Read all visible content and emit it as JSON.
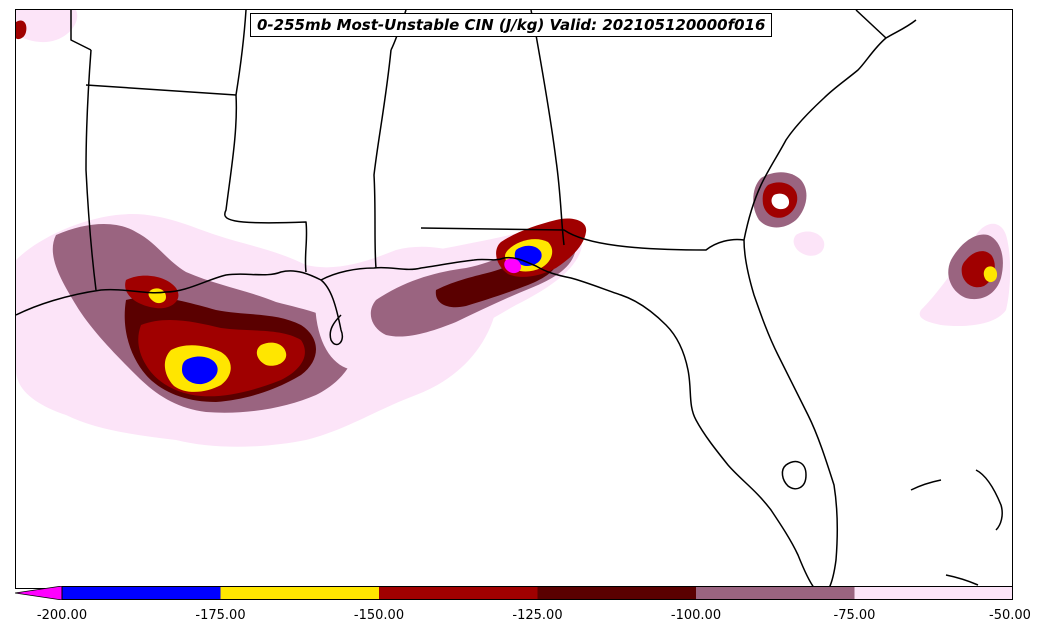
{
  "title": "0-255mb Most-Unstable CIN (J/kg) Valid: 202105120000f016",
  "colorbar": {
    "extend": "min",
    "underflow_color": "#ff00ff",
    "bins": [
      {
        "from": -200,
        "to": -175,
        "color": "#0000ff"
      },
      {
        "from": -175,
        "to": -150,
        "color": "#ffe600"
      },
      {
        "from": -150,
        "to": -125,
        "color": "#a00000"
      },
      {
        "from": -125,
        "to": -100,
        "color": "#5a0000"
      },
      {
        "from": -100,
        "to": -75,
        "color": "#9a6480"
      },
      {
        "from": -75,
        "to": -50,
        "color": "#fce4f8"
      }
    ],
    "tick_labels": [
      "-200.00",
      "-175.00",
      "-150.00",
      "-125.00",
      "-100.00",
      "-75.00",
      "-50.00"
    ]
  },
  "map": {
    "region": "US Gulf Coast / Southeast",
    "boundaries": "state and coastline outlines in black"
  }
}
